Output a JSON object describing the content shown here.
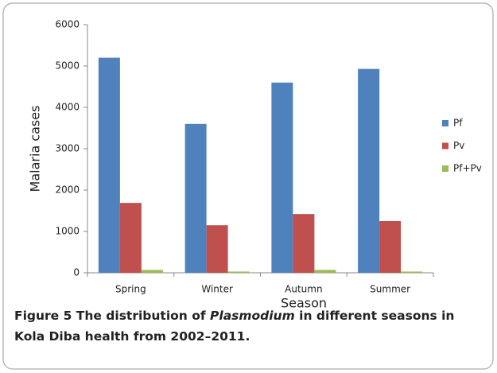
{
  "chart_data": {
    "type": "bar",
    "categories": [
      "Spring",
      "Winter",
      "Autumn",
      "Summer"
    ],
    "series": [
      {
        "name": "Pf",
        "color": "#4f81bd",
        "values": [
          5200,
          3600,
          4600,
          4930
        ]
      },
      {
        "name": "Pv",
        "color": "#c0504d",
        "values": [
          1690,
          1150,
          1420,
          1250
        ]
      },
      {
        "name": "Pf+Pv",
        "color": "#9bbb59",
        "values": [
          70,
          30,
          70,
          30
        ]
      }
    ],
    "ylim": [
      0,
      6000
    ],
    "yticks": [
      0,
      1000,
      2000,
      3000,
      4000,
      5000,
      6000
    ],
    "xlabel": "Season",
    "ylabel": "Malaria cases",
    "grid": false,
    "legend": "right"
  },
  "caption": {
    "label": "Figure 5",
    "text_before": " The distribution of ",
    "italic": "Plasmodium",
    "text_after": " in different seasons in Kola Diba health from 2002–2011."
  }
}
